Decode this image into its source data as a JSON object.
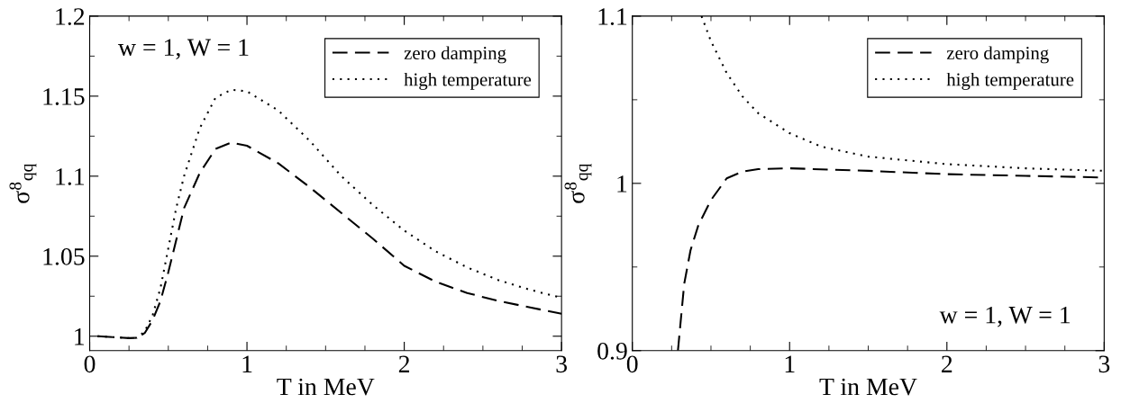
{
  "chart_data": [
    {
      "type": "line",
      "xlabel": "T in MeV",
      "ylabel": "σ$^{8}$$_{qq}$",
      "xlim": [
        0,
        3
      ],
      "xticks": [
        0,
        1,
        2,
        3
      ],
      "ylim": [
        0.991,
        1.2
      ],
      "yticks": [
        1,
        1.05,
        1.1,
        1.15,
        1.2
      ],
      "legend": "top right",
      "annotations": [
        "w = 1, W = 1"
      ],
      "grid": false,
      "series": [
        {
          "name": "zero damping",
          "color": "#000000",
          "line_style": "dashed",
          "x": [
            0.05,
            0.25,
            0.3,
            0.35,
            0.4,
            0.45,
            0.5,
            0.55,
            0.6,
            0.7,
            0.8,
            0.9,
            1.0,
            1.2,
            1.4,
            1.6,
            1.8,
            2.0,
            2.2,
            2.4,
            2.6,
            2.8,
            3.0
          ],
          "values": [
            1.0,
            0.9988,
            0.999,
            1.002,
            1.01,
            1.022,
            1.04,
            1.06,
            1.08,
            1.102,
            1.117,
            1.121,
            1.119,
            1.108,
            1.093,
            1.077,
            1.061,
            1.044,
            1.034,
            1.027,
            1.022,
            1.018,
            1.014
          ]
        },
        {
          "name": "high temperature",
          "color": "#000000",
          "line_style": "dotted",
          "x": [
            0.05,
            0.25,
            0.3,
            0.35,
            0.4,
            0.45,
            0.5,
            0.55,
            0.6,
            0.7,
            0.8,
            0.9,
            1.0,
            1.2,
            1.4,
            1.6,
            1.8,
            2.0,
            2.2,
            2.4,
            2.6,
            2.8,
            3.0
          ],
          "values": [
            1.0,
            0.9988,
            0.999,
            1.003,
            1.013,
            1.03,
            1.055,
            1.08,
            1.1,
            1.13,
            1.149,
            1.154,
            1.153,
            1.141,
            1.122,
            1.1,
            1.082,
            1.066,
            1.053,
            1.043,
            1.035,
            1.029,
            1.024
          ]
        }
      ]
    },
    {
      "type": "line",
      "xlabel": "T in MeV",
      "ylabel": "σ$^{8}$$_{qq}$",
      "xlim": [
        0,
        3
      ],
      "xticks": [
        0,
        1,
        2,
        3
      ],
      "ylim": [
        0.9,
        1.1
      ],
      "yticks": [
        0.9,
        1,
        1.1
      ],
      "legend": "top right",
      "annotations": [
        "w = 1, W = 1"
      ],
      "grid": false,
      "series": [
        {
          "name": "zero damping",
          "color": "#000000",
          "line_style": "dashed",
          "x": [
            0.29,
            0.3,
            0.33,
            0.37,
            0.42,
            0.5,
            0.6,
            0.7,
            0.8,
            1.0,
            1.5,
            2.0,
            2.5,
            3.0
          ],
          "values": [
            0.9,
            0.91,
            0.94,
            0.96,
            0.975,
            0.99,
            1.003,
            1.007,
            1.0085,
            1.009,
            1.0075,
            1.0055,
            1.0045,
            1.0035
          ]
        },
        {
          "name": "high temperature",
          "color": "#000000",
          "line_style": "dotted",
          "x": [
            0.44,
            0.5,
            0.6,
            0.7,
            0.8,
            1.0,
            1.2,
            1.5,
            2.0,
            2.5,
            3.0
          ],
          "values": [
            1.1,
            1.085,
            1.066,
            1.052,
            1.042,
            1.03,
            1.022,
            1.016,
            1.0115,
            1.009,
            1.0075
          ]
        }
      ]
    }
  ]
}
